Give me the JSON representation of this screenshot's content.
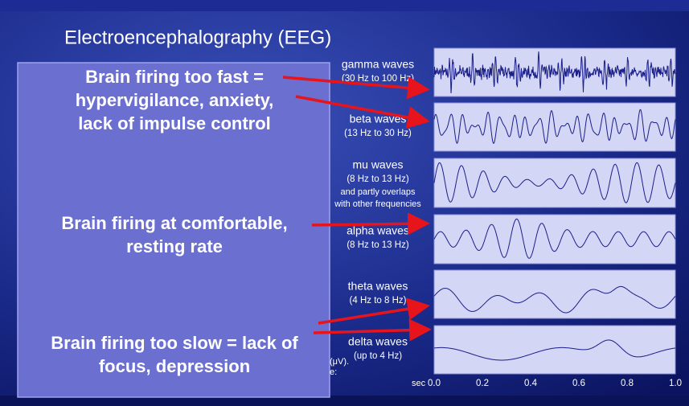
{
  "title": "Electroencephalography (EEG)",
  "left_panel": {
    "blocks": [
      {
        "lines": [
          "Brain firing too fast =",
          "hypervigilance, anxiety,",
          "lack of impulse control"
        ]
      },
      {
        "lines": [
          "Brain firing at comfortable,",
          "resting rate"
        ]
      },
      {
        "lines": [
          "Brain firing too slow =  lack of",
          "focus, depression"
        ]
      }
    ]
  },
  "waves": [
    {
      "name": "gamma waves",
      "range": "(30 Hz to 100 Hz)"
    },
    {
      "name": "beta waves",
      "range": "(13 Hz to 30 Hz)"
    },
    {
      "name": "mu waves",
      "range": "(8 Hz to 13 Hz)",
      "notes": [
        "and partly overlaps",
        "with other frequencies"
      ]
    },
    {
      "name": "alpha waves",
      "range": "(8 Hz to 13 Hz)"
    },
    {
      "name": "theta waves",
      "range": "(4 Hz to 8 Hz)"
    },
    {
      "name": "delta waves",
      "range": "(up to 4 Hz)"
    }
  ],
  "fragments": [
    "(μV).",
    "e:"
  ],
  "axis": {
    "label": "sec",
    "ticks": [
      "0.0",
      "0.2",
      "0.4",
      "0.6",
      "0.8",
      "1.0"
    ]
  }
}
